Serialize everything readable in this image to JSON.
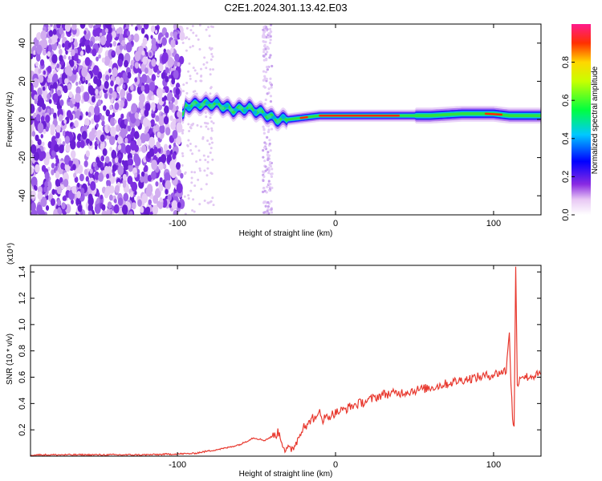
{
  "title": "C2E1.2024.301.13.42.E03",
  "chart_data": [
    {
      "type": "heatmap",
      "xlabel": "Height of straight line (km)",
      "ylabel": "Frequency (Hz)",
      "xlim": [
        -193,
        130
      ],
      "ylim": [
        -50,
        50
      ],
      "xticks": [
        -100,
        0,
        100
      ],
      "yticks": [
        -40,
        -20,
        0,
        20,
        40
      ],
      "colorbar": {
        "label": "Normalized spectral amplitude",
        "range": [
          0,
          1
        ],
        "ticks": [
          0.0,
          0.2,
          0.4,
          0.6,
          0.8
        ]
      },
      "ridge": {
        "x": [
          -95,
          -85,
          -75,
          -65,
          -55,
          -45,
          -38,
          -30,
          -20,
          -10,
          0,
          20,
          40,
          60,
          80,
          100,
          110,
          120,
          130
        ],
        "frequency": [
          7,
          8,
          8,
          5,
          6,
          3,
          0,
          0,
          1,
          2,
          2,
          2,
          2,
          2,
          3,
          3,
          2,
          2,
          2
        ]
      }
    },
    {
      "type": "line",
      "xlabel": "Height of straight line (km)",
      "ylabel": "SNR (10 * v/v)",
      "scale_label": "(x10⁴)",
      "xlim": [
        -193,
        130
      ],
      "ylim": [
        0,
        1.45
      ],
      "xticks": [
        -100,
        0,
        100
      ],
      "yticks": [
        0.2,
        0.4,
        0.6,
        0.8,
        1.0,
        1.2,
        1.4
      ],
      "series": [
        {
          "color": "#e8392f",
          "x": [
            -193,
            -120,
            -90,
            -80,
            -70,
            -60,
            -52,
            -45,
            -40,
            -36,
            -32,
            -28,
            -25,
            -22,
            -20,
            -18,
            -15,
            -12,
            -10,
            -8,
            -5,
            0,
            5,
            10,
            20,
            30,
            40,
            50,
            60,
            70,
            80,
            90,
            100,
            105,
            108,
            110,
            111,
            112,
            113,
            114,
            115,
            116,
            118,
            120,
            125,
            130
          ],
          "y": [
            0.01,
            0.01,
            0.02,
            0.04,
            0.06,
            0.09,
            0.14,
            0.12,
            0.15,
            0.18,
            0.05,
            0.05,
            0.1,
            0.18,
            0.25,
            0.22,
            0.3,
            0.27,
            0.35,
            0.28,
            0.3,
            0.33,
            0.35,
            0.38,
            0.42,
            0.47,
            0.48,
            0.5,
            0.52,
            0.55,
            0.58,
            0.6,
            0.62,
            0.64,
            0.65,
            0.96,
            0.55,
            0.3,
            0.22,
            1.42,
            0.55,
            0.58,
            0.62,
            0.6,
            0.61,
            0.62
          ]
        }
      ]
    }
  ]
}
